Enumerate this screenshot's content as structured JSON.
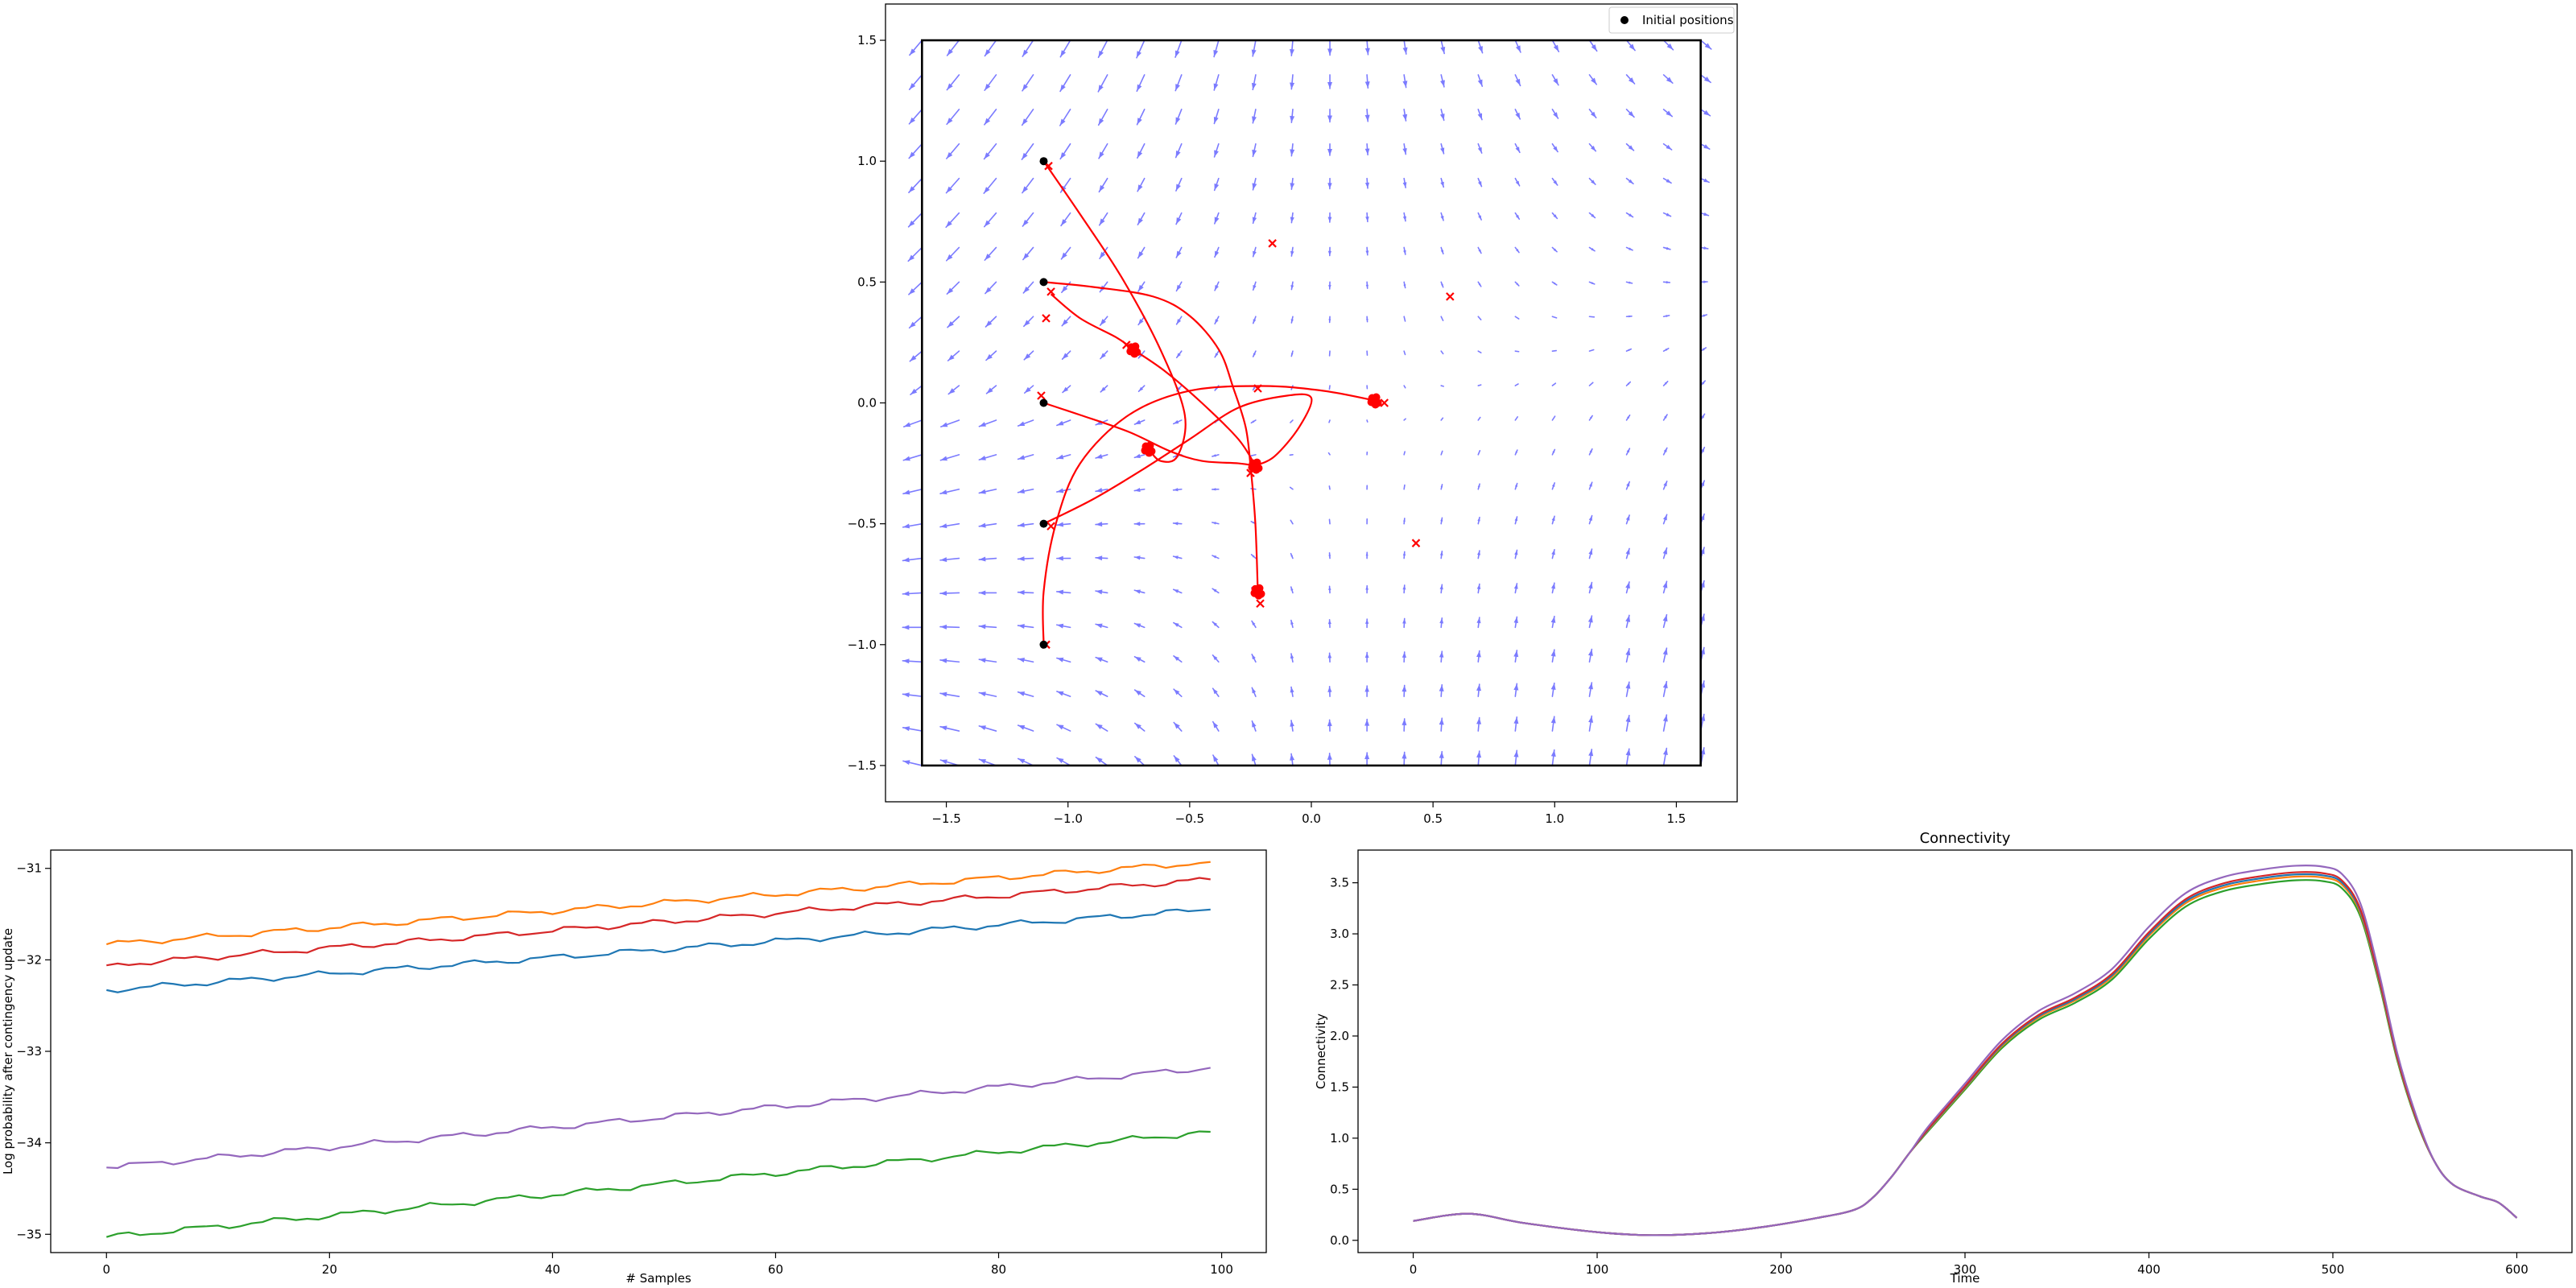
{
  "chart_data": [
    {
      "type": "quiver",
      "xlim": [
        -1.75,
        1.75
      ],
      "ylim": [
        -1.65,
        1.65
      ],
      "xticks": [
        -1.5,
        -1.0,
        -0.5,
        0.0,
        0.5,
        1.0,
        1.5
      ],
      "yticks": [
        -1.5,
        -1.0,
        -0.5,
        0.0,
        0.5,
        1.0,
        1.5
      ],
      "xtick_labels": [
        "−1.5",
        "−1.0",
        "−0.5",
        "0.0",
        "0.5",
        "1.0",
        "1.5"
      ],
      "ytick_labels": [
        "−1.5",
        "−1.0",
        "−0.5",
        "0.0",
        "0.5",
        "1.0",
        "1.5"
      ],
      "boundary_box": {
        "x": [
          -1.6,
          1.6
        ],
        "y": [
          -1.5,
          1.5
        ]
      },
      "legend": {
        "position": "upper right",
        "entries": [
          "Initial positions"
        ]
      },
      "field_color": "#7b7bff",
      "trajectory_color": "#ff0000",
      "initial_positions": [
        [
          -1.1,
          1.0
        ],
        [
          -1.1,
          0.5
        ],
        [
          -1.1,
          0.0
        ],
        [
          -1.1,
          -0.5
        ],
        [
          -1.1,
          -1.0
        ]
      ],
      "final_clusters": [
        [
          -0.73,
          0.22
        ],
        [
          -0.67,
          -0.19
        ],
        [
          -0.23,
          -0.26
        ],
        [
          0.26,
          0.01
        ],
        [
          -0.22,
          -0.78
        ]
      ],
      "target_markers": [
        [
          -1.08,
          0.98
        ],
        [
          -1.07,
          0.46
        ],
        [
          -1.09,
          0.35
        ],
        [
          -1.11,
          0.03
        ],
        [
          -1.07,
          -0.51
        ],
        [
          -1.09,
          -1.0
        ],
        [
          -0.76,
          0.24
        ],
        [
          -0.22,
          0.06
        ],
        [
          0.3,
          0.0
        ],
        [
          -0.16,
          0.66
        ],
        [
          0.57,
          0.44
        ],
        [
          0.43,
          -0.58
        ],
        [
          -0.21,
          -0.83
        ],
        [
          -0.25,
          -0.29
        ]
      ],
      "trajectories": [
        [
          [
            -1.1,
            1.0
          ],
          [
            -0.95,
            0.78
          ],
          [
            -0.78,
            0.52
          ],
          [
            -0.62,
            0.22
          ],
          [
            -0.52,
            -0.05
          ],
          [
            -0.55,
            -0.22
          ],
          [
            -0.62,
            -0.24
          ],
          [
            -0.67,
            -0.19
          ]
        ],
        [
          [
            -1.1,
            0.5
          ],
          [
            -0.9,
            0.48
          ],
          [
            -0.65,
            0.44
          ],
          [
            -0.5,
            0.36
          ],
          [
            -0.38,
            0.22
          ],
          [
            -0.32,
            0.06
          ],
          [
            -0.27,
            -0.1
          ],
          [
            -0.25,
            -0.26
          ],
          [
            -0.23,
            -0.5
          ],
          [
            -0.22,
            -0.78
          ]
        ],
        [
          [
            -1.1,
            0.0
          ],
          [
            -0.95,
            -0.05
          ],
          [
            -0.75,
            -0.12
          ],
          [
            -0.58,
            -0.2
          ],
          [
            -0.45,
            -0.24
          ],
          [
            -0.3,
            -0.25
          ],
          [
            -0.23,
            -0.26
          ]
        ],
        [
          [
            -1.1,
            -0.5
          ],
          [
            -0.9,
            -0.4
          ],
          [
            -0.7,
            -0.28
          ],
          [
            -0.5,
            -0.15
          ],
          [
            -0.3,
            -0.02
          ],
          [
            -0.1,
            0.03
          ],
          [
            0.0,
            0.02
          ],
          [
            -0.05,
            -0.1
          ],
          [
            -0.15,
            -0.22
          ],
          [
            -0.23,
            -0.26
          ]
        ],
        [
          [
            -1.1,
            -1.0
          ],
          [
            -1.1,
            -0.78
          ],
          [
            -1.05,
            -0.5
          ],
          [
            -0.95,
            -0.25
          ],
          [
            -0.75,
            -0.05
          ],
          [
            -0.5,
            0.05
          ],
          [
            -0.2,
            0.07
          ],
          [
            0.05,
            0.05
          ],
          [
            0.26,
            0.01
          ]
        ],
        [
          [
            -1.07,
            0.45
          ],
          [
            -0.95,
            0.35
          ],
          [
            -0.8,
            0.27
          ],
          [
            -0.73,
            0.22
          ],
          [
            -0.6,
            0.13
          ],
          [
            -0.45,
            0.0
          ],
          [
            -0.3,
            -0.15
          ],
          [
            -0.23,
            -0.26
          ]
        ]
      ]
    },
    {
      "type": "line",
      "xlabel": "# Samples",
      "ylabel": "Log probability after contingency update",
      "xlim": [
        -5,
        104
      ],
      "ylim": [
        -35.2,
        -30.8
      ],
      "xticks": [
        0,
        20,
        40,
        60,
        80,
        100
      ],
      "yticks": [
        -35,
        -34,
        -33,
        -32,
        -31
      ],
      "ytick_labels": [
        "−35",
        "−34",
        "−33",
        "−32",
        "−31"
      ],
      "x": [
        0,
        99
      ],
      "series": [
        {
          "color": "#ff7f0e",
          "values": [
            -31.83,
            -30.93
          ]
        },
        {
          "color": "#d62728",
          "values": [
            -32.06,
            -31.12
          ]
        },
        {
          "color": "#1f77b4",
          "values": [
            -32.33,
            -31.45
          ]
        },
        {
          "color": "#9467bd",
          "values": [
            -34.27,
            -33.18
          ]
        },
        {
          "color": "#2ca02c",
          "values": [
            -35.03,
            -33.88
          ]
        }
      ]
    },
    {
      "type": "line",
      "title": "Connectivity",
      "xlabel": "Time",
      "ylabel": "Connectivity",
      "xlim": [
        -30,
        630
      ],
      "ylim": [
        -0.12,
        3.82
      ],
      "xticks": [
        0,
        100,
        200,
        300,
        400,
        500,
        600
      ],
      "yticks": [
        0.0,
        0.5,
        1.0,
        1.5,
        2.0,
        2.5,
        3.0,
        3.5
      ],
      "ytick_labels": [
        "0.0",
        "0.5",
        "1.0",
        "1.5",
        "2.0",
        "2.5",
        "3.0",
        "3.5"
      ],
      "x": [
        0,
        30,
        60,
        100,
        130,
        160,
        190,
        220,
        240,
        250,
        260,
        270,
        280,
        300,
        320,
        340,
        360,
        380,
        400,
        420,
        440,
        460,
        480,
        495,
        505,
        515,
        525,
        535,
        545,
        555,
        565,
        580,
        590,
        600
      ],
      "base": [
        0.19,
        0.26,
        0.17,
        0.08,
        0.05,
        0.07,
        0.13,
        0.22,
        0.3,
        0.42,
        0.62,
        0.86,
        1.08,
        1.49,
        1.9,
        2.18,
        2.35,
        2.58,
        2.98,
        3.3,
        3.45,
        3.52,
        3.56,
        3.55,
        3.48,
        3.2,
        2.55,
        1.78,
        1.2,
        0.78,
        0.55,
        0.43,
        0.37,
        0.22
      ],
      "series": [
        {
          "color": "#2ca02c",
          "scale": 0.99
        },
        {
          "color": "#ff7f0e",
          "scale": 1.0
        },
        {
          "color": "#1f77b4",
          "scale": 1.006
        },
        {
          "color": "#d62728",
          "scale": 1.012
        },
        {
          "color": "#9467bd",
          "scale": 1.03
        }
      ]
    }
  ]
}
